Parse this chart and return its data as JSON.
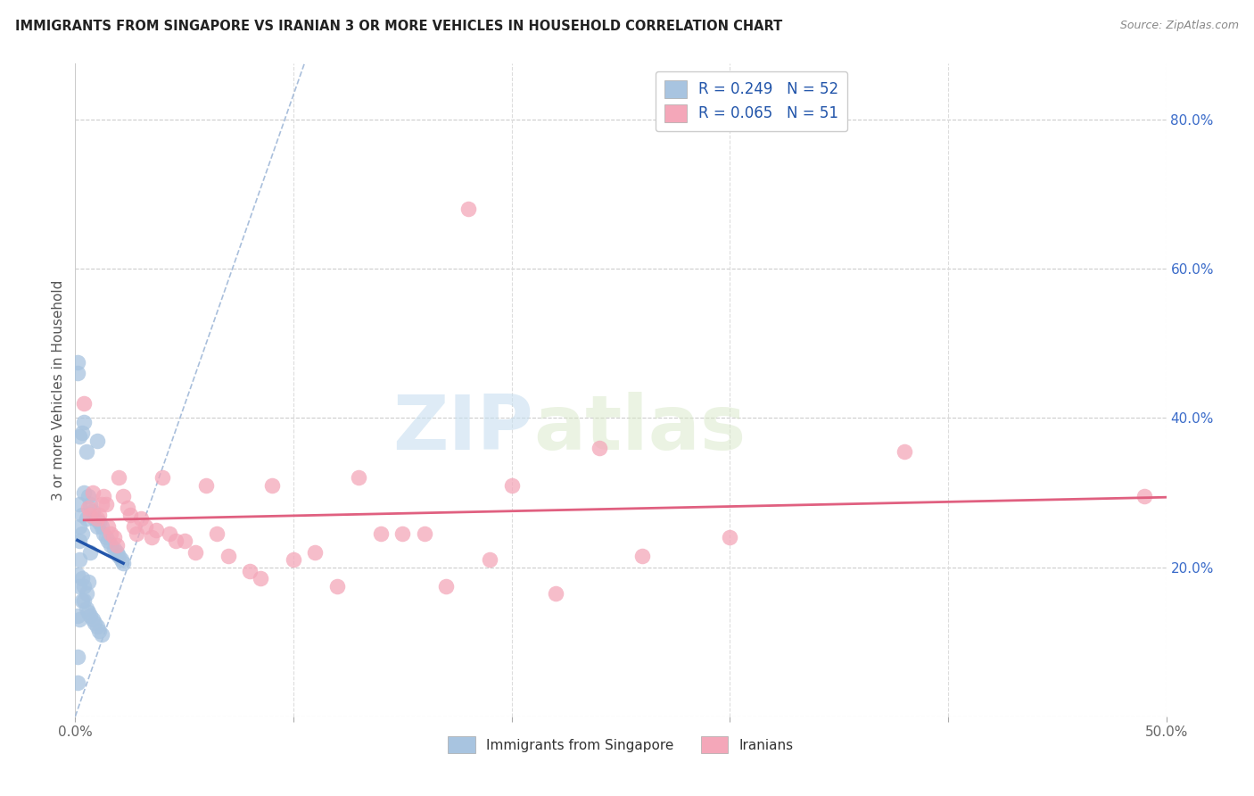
{
  "title": "IMMIGRANTS FROM SINGAPORE VS IRANIAN 3 OR MORE VEHICLES IN HOUSEHOLD CORRELATION CHART",
  "source": "Source: ZipAtlas.com",
  "ylabel": "3 or more Vehicles in Household",
  "xlim": [
    0.0,
    0.5
  ],
  "ylim": [
    0.0,
    0.875
  ],
  "right_yticks": [
    0.2,
    0.4,
    0.6,
    0.8
  ],
  "right_yticklabels": [
    "20.0%",
    "40.0%",
    "60.0%",
    "80.0%"
  ],
  "xticks": [
    0.0,
    0.1,
    0.2,
    0.3,
    0.4,
    0.5
  ],
  "xticklabels": [
    "0.0%",
    "",
    "",
    "",
    "",
    "50.0%"
  ],
  "singapore_R": 0.249,
  "singapore_N": 52,
  "iranian_R": 0.065,
  "iranian_N": 51,
  "singapore_color": "#a8c4e0",
  "iranian_color": "#f4a7b9",
  "singapore_line_color": "#2255aa",
  "iranian_line_color": "#e06080",
  "diag_line_color": "#a0b8d8",
  "background_color": "#ffffff",
  "watermark_zip": "ZIP",
  "watermark_atlas": "atlas",
  "singapore_x": [
    0.001,
    0.001,
    0.001,
    0.001,
    0.001,
    0.002,
    0.002,
    0.002,
    0.002,
    0.002,
    0.002,
    0.003,
    0.003,
    0.003,
    0.003,
    0.004,
    0.004,
    0.004,
    0.005,
    0.005,
    0.005,
    0.006,
    0.006,
    0.007,
    0.007,
    0.008,
    0.009,
    0.01,
    0.01,
    0.011,
    0.012,
    0.013,
    0.014,
    0.015,
    0.016,
    0.018,
    0.019,
    0.02,
    0.021,
    0.022,
    0.001,
    0.002,
    0.003,
    0.004,
    0.005,
    0.006,
    0.007,
    0.008,
    0.009,
    0.01,
    0.011,
    0.012
  ],
  "singapore_y": [
    0.475,
    0.46,
    0.19,
    0.135,
    0.045,
    0.375,
    0.285,
    0.255,
    0.235,
    0.21,
    0.175,
    0.38,
    0.27,
    0.245,
    0.185,
    0.395,
    0.3,
    0.175,
    0.355,
    0.265,
    0.165,
    0.295,
    0.18,
    0.285,
    0.22,
    0.275,
    0.265,
    0.37,
    0.255,
    0.26,
    0.255,
    0.245,
    0.24,
    0.235,
    0.23,
    0.225,
    0.22,
    0.215,
    0.21,
    0.205,
    0.08,
    0.13,
    0.155,
    0.155,
    0.145,
    0.14,
    0.135,
    0.13,
    0.125,
    0.12,
    0.115,
    0.11
  ],
  "iranian_x": [
    0.004,
    0.006,
    0.007,
    0.008,
    0.01,
    0.011,
    0.012,
    0.013,
    0.014,
    0.015,
    0.016,
    0.018,
    0.019,
    0.02,
    0.022,
    0.024,
    0.025,
    0.027,
    0.028,
    0.03,
    0.032,
    0.035,
    0.037,
    0.04,
    0.043,
    0.046,
    0.05,
    0.055,
    0.06,
    0.065,
    0.07,
    0.08,
    0.085,
    0.09,
    0.1,
    0.11,
    0.12,
    0.13,
    0.14,
    0.15,
    0.16,
    0.17,
    0.18,
    0.19,
    0.2,
    0.22,
    0.24,
    0.26,
    0.3,
    0.38,
    0.49
  ],
  "iranian_y": [
    0.42,
    0.28,
    0.27,
    0.3,
    0.265,
    0.27,
    0.285,
    0.295,
    0.285,
    0.255,
    0.245,
    0.24,
    0.23,
    0.32,
    0.295,
    0.28,
    0.27,
    0.255,
    0.245,
    0.265,
    0.255,
    0.24,
    0.25,
    0.32,
    0.245,
    0.235,
    0.235,
    0.22,
    0.31,
    0.245,
    0.215,
    0.195,
    0.185,
    0.31,
    0.21,
    0.22,
    0.175,
    0.32,
    0.245,
    0.245,
    0.245,
    0.175,
    0.68,
    0.21,
    0.31,
    0.165,
    0.36,
    0.215,
    0.24,
    0.355,
    0.295
  ]
}
